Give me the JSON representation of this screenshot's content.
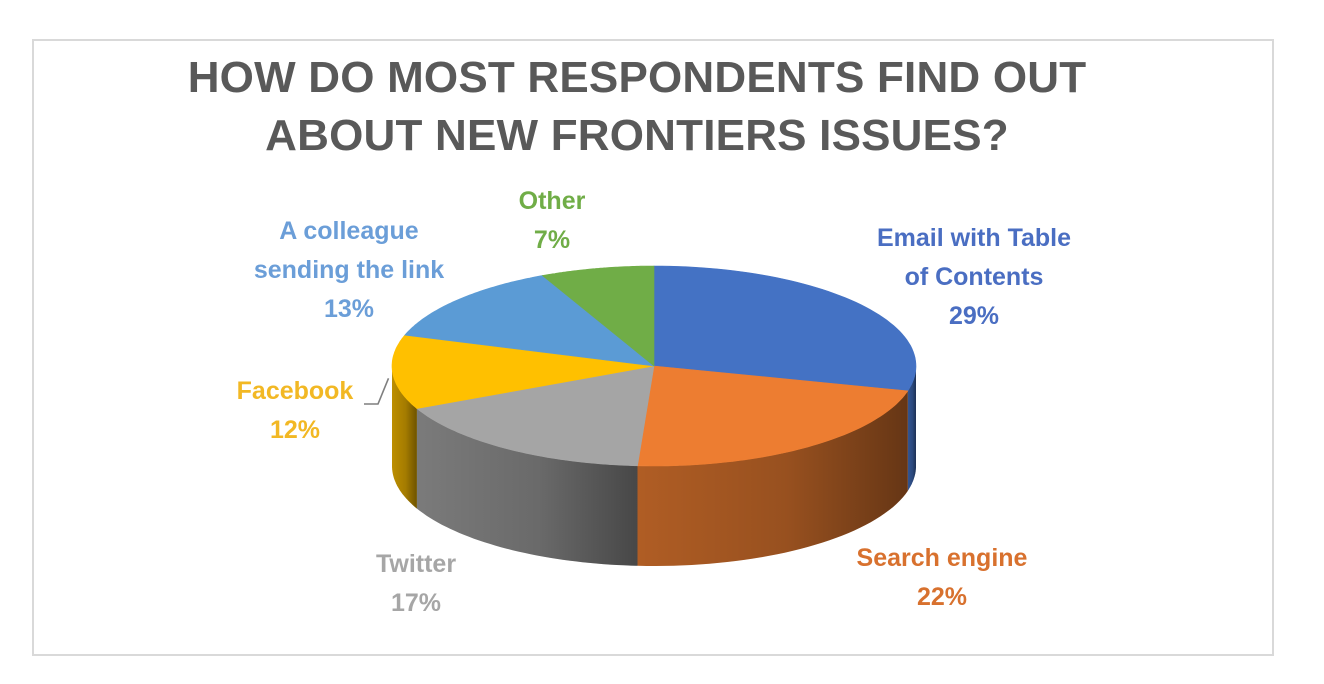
{
  "chart_data": {
    "type": "pie",
    "style": "3d-tilted",
    "title_lines": [
      "HOW DO MOST RESPONDENTS FIND OUT",
      "ABOUT NEW FRONTIERS ISSUES?"
    ],
    "slices": [
      {
        "label_lines": [
          "Email with Table",
          "of Contents"
        ],
        "value": 29,
        "value_text": "29%",
        "color": "#4472c4",
        "label_color": "#4a6ec2"
      },
      {
        "label_lines": [
          "Search engine"
        ],
        "value": 22,
        "value_text": "22%",
        "color": "#ed7d31",
        "label_color": "#d8712e"
      },
      {
        "label_lines": [
          "Twitter"
        ],
        "value": 17,
        "value_text": "17%",
        "color": "#a5a5a5",
        "label_color": "#a6a6a6"
      },
      {
        "label_lines": [
          "Facebook"
        ],
        "value": 12,
        "value_text": "12%",
        "color": "#ffc000",
        "label_color": "#f2b824"
      },
      {
        "label_lines": [
          "A colleague",
          "sending the link"
        ],
        "value": 13,
        "value_text": "13%",
        "color": "#5b9bd5",
        "label_color": "#6b9ed8"
      },
      {
        "label_lines": [
          "Other"
        ],
        "value": 7,
        "value_text": "7%",
        "color": "#70ad47",
        "label_color": "#70ad47"
      }
    ],
    "legend": "none",
    "start": "12 o'clock",
    "direction": "clockwise"
  }
}
